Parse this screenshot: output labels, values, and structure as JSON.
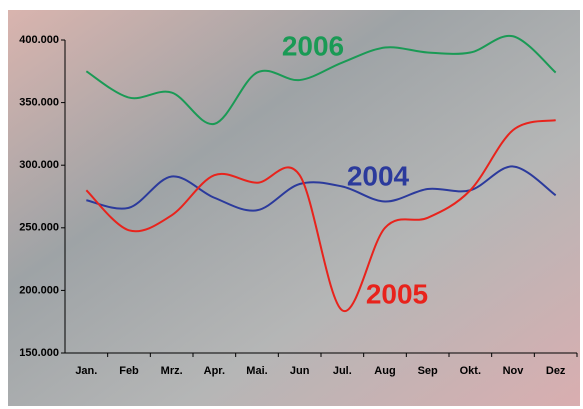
{
  "chart_data": {
    "type": "line",
    "categories": [
      "Jan.",
      "Feb",
      "Mrz.",
      "Apr.",
      "Mai.",
      "Jun",
      "Jul.",
      "Aug",
      "Sep",
      "Okt.",
      "Nov",
      "Dez"
    ],
    "series": [
      {
        "name": "2004",
        "color": "#2b3a9c",
        "values": [
          272000,
          266000,
          291000,
          274000,
          264000,
          285000,
          283000,
          271000,
          281000,
          280000,
          299000,
          276000
        ]
      },
      {
        "name": "2005",
        "color": "#e8231c",
        "values": [
          280000,
          248000,
          260000,
          292000,
          286000,
          292000,
          184000,
          250000,
          258000,
          280000,
          328000,
          336000
        ]
      },
      {
        "name": "2006",
        "color": "#1a9a55",
        "values": [
          375000,
          354000,
          358000,
          333000,
          374000,
          368000,
          382000,
          394000,
          390000,
          390000,
          403000,
          374000
        ]
      }
    ],
    "ylim": [
      150000,
      400000
    ],
    "yticks": [
      {
        "value": 150000,
        "label": "150.000"
      },
      {
        "value": 200000,
        "label": "200.000"
      },
      {
        "value": 250000,
        "label": "250.000"
      },
      {
        "value": 300000,
        "label": "300.000"
      },
      {
        "value": 350000,
        "label": "350.000"
      },
      {
        "value": 400000,
        "label": "400.000"
      }
    ]
  }
}
